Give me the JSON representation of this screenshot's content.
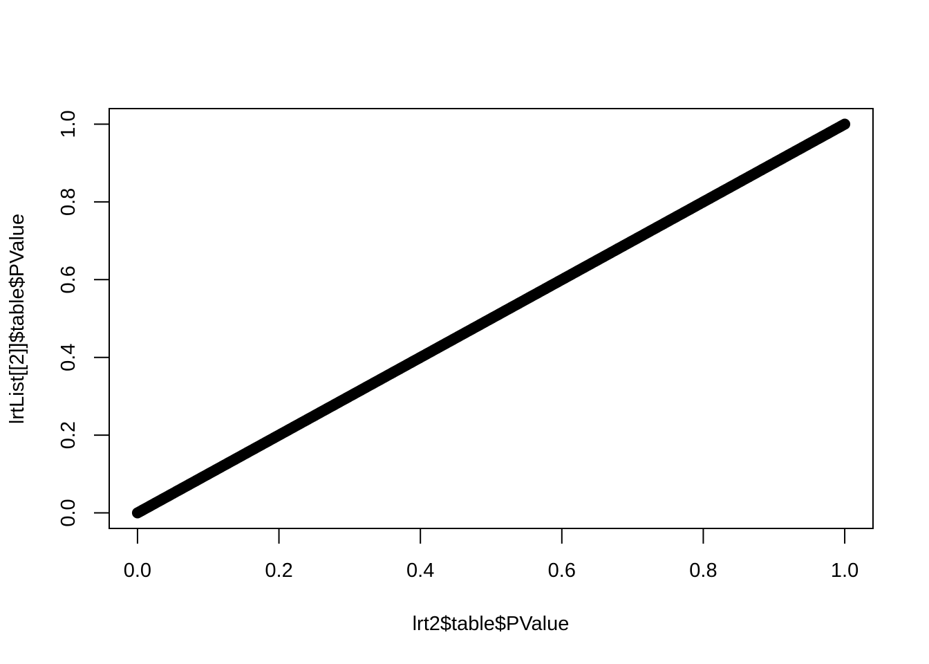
{
  "chart_data": {
    "type": "scatter",
    "title": "",
    "xlabel": "lrt2$table$PValue",
    "ylabel": "lrtList[[2]]$table$PValue",
    "xlim": [
      -0.04,
      1.04
    ],
    "ylim": [
      -0.04,
      1.04
    ],
    "xticks": [
      "0.0",
      "0.2",
      "0.4",
      "0.6",
      "0.8",
      "1.0"
    ],
    "yticks": [
      "0.0",
      "0.2",
      "0.4",
      "0.6",
      "0.8",
      "1.0"
    ],
    "grid": false,
    "legend": "none",
    "point_color": "#000000",
    "description_of_points": "dense points along y = x from 0 to 1",
    "point_count": 400,
    "x_range": [
      0,
      1
    ],
    "slope": 1
  }
}
